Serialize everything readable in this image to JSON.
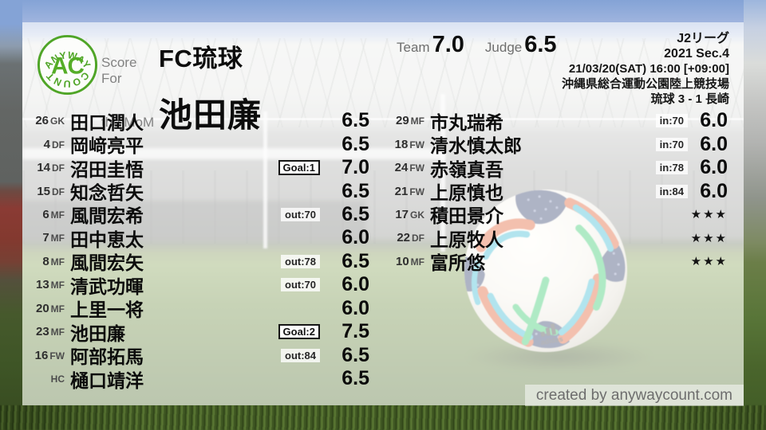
{
  "brand": {
    "logo_top": "ANYWAY",
    "logo_center": "AC",
    "logo_bottom": "COUNT",
    "credit": "created by anywaycount.com"
  },
  "header": {
    "score_for_label": "Score For",
    "team_name": "FC琉球",
    "mom_label": "the MoM",
    "mom_name": "池田廉",
    "team_label": "Team",
    "team_score": "7.0",
    "judge_label": "Judge",
    "judge_score": "6.5"
  },
  "match": {
    "league": "J2リーグ",
    "season": "2021 Sec.4",
    "kickoff": "21/03/20(SAT) 16:00 [+09:00]",
    "venue": "沖縄県総合運動公園陸上競技場",
    "result": "琉球 3 - 1 長崎"
  },
  "colors": {
    "logo_green": "#4fa527",
    "text_primary": "#0c0c0c",
    "label_gray": "#7d7d7d",
    "credit_gray": "#6d6d6d",
    "overlay_white": "rgba(255,255,255,0.62)",
    "pitch_green": "#557233",
    "sky_blue": "#8aa7d6",
    "ball_orange": "#e0592b",
    "ball_teal": "#35b9d2",
    "ball_green": "#2fc868",
    "ball_navy": "#2c3a66"
  },
  "starters": [
    {
      "num": "26",
      "pos": "GK",
      "name": "田口潤人",
      "rating": "6.5"
    },
    {
      "num": "4",
      "pos": "DF",
      "name": "岡﨑亮平",
      "rating": "6.5"
    },
    {
      "num": "14",
      "pos": "DF",
      "name": "沼田圭悟",
      "badge": {
        "label": "Goal:1",
        "style": "goal"
      },
      "rating": "7.0"
    },
    {
      "num": "15",
      "pos": "DF",
      "name": "知念哲矢",
      "rating": "6.5"
    },
    {
      "num": "6",
      "pos": "MF",
      "name": "風間宏希",
      "badge": {
        "label": "out:70",
        "style": "sub"
      },
      "rating": "6.5"
    },
    {
      "num": "7",
      "pos": "MF",
      "name": "田中恵太",
      "rating": "6.0"
    },
    {
      "num": "8",
      "pos": "MF",
      "name": "風間宏矢",
      "badge": {
        "label": "out:78",
        "style": "sub"
      },
      "rating": "6.5"
    },
    {
      "num": "13",
      "pos": "MF",
      "name": "清武功暉",
      "badge": {
        "label": "out:70",
        "style": "sub"
      },
      "rating": "6.0"
    },
    {
      "num": "20",
      "pos": "MF",
      "name": "上里一将",
      "rating": "6.0"
    },
    {
      "num": "23",
      "pos": "MF",
      "name": "池田廉",
      "badge": {
        "label": "Goal:2",
        "style": "goal"
      },
      "rating": "7.5"
    },
    {
      "num": "16",
      "pos": "FW",
      "name": "阿部拓馬",
      "badge": {
        "label": "out:84",
        "style": "sub"
      },
      "rating": "6.5"
    },
    {
      "num": "",
      "pos": "HC",
      "name": "樋口靖洋",
      "rating": "6.5"
    }
  ],
  "subs": [
    {
      "num": "29",
      "pos": "MF",
      "name": "市丸瑞希",
      "badge": {
        "label": "in:70",
        "style": "sub"
      },
      "rating": "6.0"
    },
    {
      "num": "18",
      "pos": "FW",
      "name": "清水慎太郎",
      "badge": {
        "label": "in:70",
        "style": "sub"
      },
      "rating": "6.0"
    },
    {
      "num": "24",
      "pos": "FW",
      "name": "赤嶺真吾",
      "badge": {
        "label": "in:78",
        "style": "sub"
      },
      "rating": "6.0"
    },
    {
      "num": "21",
      "pos": "FW",
      "name": "上原慎也",
      "badge": {
        "label": "in:84",
        "style": "sub"
      },
      "rating": "6.0"
    },
    {
      "num": "17",
      "pos": "GK",
      "name": "積田景介",
      "rating": "★★★",
      "stars": true
    },
    {
      "num": "22",
      "pos": "DF",
      "name": "上原牧人",
      "rating": "★★★",
      "stars": true
    },
    {
      "num": "10",
      "pos": "MF",
      "name": "富所悠",
      "rating": "★★★",
      "stars": true
    }
  ]
}
